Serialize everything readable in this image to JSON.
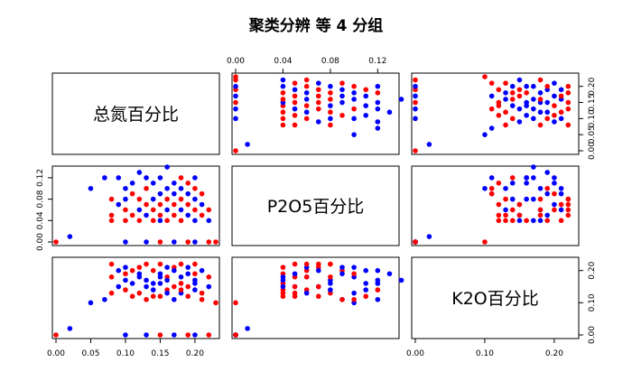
{
  "chart_data": {
    "type": "scatter",
    "title": "聚类分辨 等 4 分组",
    "variables": [
      "总氮百分比",
      "P2O5百分比",
      "K2O百分比"
    ],
    "colors": {
      "group_a": "#0000ff",
      "group_b": "#ff0000",
      "frame": "#000000"
    },
    "axes": {
      "v0": {
        "ticks": [
          0.0,
          0.05,
          0.1,
          0.15,
          0.2
        ],
        "range": [
          0.0,
          0.23
        ]
      },
      "v1": {
        "ticks": [
          0.0,
          0.04,
          0.08,
          0.12
        ],
        "range": [
          0.0,
          0.135
        ]
      },
      "v2": {
        "ticks": [
          0.0,
          0.1,
          0.2
        ],
        "range": [
          0.0,
          0.23
        ]
      }
    },
    "points": [
      {
        "n": 0.0,
        "p": 0.0,
        "k": 0.0,
        "g": "b"
      },
      {
        "n": 0.02,
        "p": 0.01,
        "k": 0.02,
        "g": "a"
      },
      {
        "n": 0.05,
        "p": 0.1,
        "k": 0.1,
        "g": "a"
      },
      {
        "n": 0.07,
        "p": 0.12,
        "k": 0.11,
        "g": "a"
      },
      {
        "n": 0.08,
        "p": 0.08,
        "k": 0.22,
        "g": "b"
      },
      {
        "n": 0.08,
        "p": 0.05,
        "k": 0.18,
        "g": "b"
      },
      {
        "n": 0.08,
        "p": 0.04,
        "k": 0.13,
        "g": "b"
      },
      {
        "n": 0.09,
        "p": 0.12,
        "k": 0.2,
        "g": "a"
      },
      {
        "n": 0.09,
        "p": 0.07,
        "k": 0.15,
        "g": "a"
      },
      {
        "n": 0.1,
        "p": 0.0,
        "k": 0.0,
        "g": "a"
      },
      {
        "n": 0.1,
        "p": 0.04,
        "k": 0.19,
        "g": "b"
      },
      {
        "n": 0.1,
        "p": 0.06,
        "k": 0.14,
        "g": "b"
      },
      {
        "n": 0.1,
        "p": 0.08,
        "k": 0.17,
        "g": "a"
      },
      {
        "n": 0.1,
        "p": 0.1,
        "k": 0.21,
        "g": "a"
      },
      {
        "n": 0.11,
        "p": 0.05,
        "k": 0.12,
        "g": "b"
      },
      {
        "n": 0.11,
        "p": 0.11,
        "k": 0.16,
        "g": "a"
      },
      {
        "n": 0.11,
        "p": 0.09,
        "k": 0.2,
        "g": "b"
      },
      {
        "n": 0.12,
        "p": 0.04,
        "k": 0.21,
        "g": "b"
      },
      {
        "n": 0.12,
        "p": 0.06,
        "k": 0.18,
        "g": "a"
      },
      {
        "n": 0.12,
        "p": 0.08,
        "k": 0.13,
        "g": "b"
      },
      {
        "n": 0.12,
        "p": 0.13,
        "k": 0.19,
        "g": "a"
      },
      {
        "n": 0.13,
        "p": 0.0,
        "k": 0.0,
        "g": "a"
      },
      {
        "n": 0.13,
        "p": 0.05,
        "k": 0.15,
        "g": "a"
      },
      {
        "n": 0.13,
        "p": 0.07,
        "k": 0.22,
        "g": "b"
      },
      {
        "n": 0.13,
        "p": 0.1,
        "k": 0.11,
        "g": "b"
      },
      {
        "n": 0.13,
        "p": 0.12,
        "k": 0.17,
        "g": "a"
      },
      {
        "n": 0.14,
        "p": 0.04,
        "k": 0.12,
        "g": "b"
      },
      {
        "n": 0.14,
        "p": 0.06,
        "k": 0.2,
        "g": "b"
      },
      {
        "n": 0.14,
        "p": 0.08,
        "k": 0.16,
        "g": "a"
      },
      {
        "n": 0.14,
        "p": 0.11,
        "k": 0.14,
        "g": "a"
      },
      {
        "n": 0.15,
        "p": 0.0,
        "k": 0.0,
        "g": "b"
      },
      {
        "n": 0.15,
        "p": 0.04,
        "k": 0.18,
        "g": "a"
      },
      {
        "n": 0.15,
        "p": 0.05,
        "k": 0.22,
        "g": "b"
      },
      {
        "n": 0.15,
        "p": 0.07,
        "k": 0.12,
        "g": "b"
      },
      {
        "n": 0.15,
        "p": 0.09,
        "k": 0.19,
        "g": "a"
      },
      {
        "n": 0.15,
        "p": 0.12,
        "k": 0.16,
        "g": "a"
      },
      {
        "n": 0.16,
        "p": 0.04,
        "k": 0.14,
        "g": "b"
      },
      {
        "n": 0.16,
        "p": 0.06,
        "k": 0.21,
        "g": "a"
      },
      {
        "n": 0.16,
        "p": 0.08,
        "k": 0.18,
        "g": "b"
      },
      {
        "n": 0.16,
        "p": 0.1,
        "k": 0.13,
        "g": "a"
      },
      {
        "n": 0.16,
        "p": 0.14,
        "k": 0.17,
        "g": "a"
      },
      {
        "n": 0.17,
        "p": 0.0,
        "k": 0.0,
        "g": "a"
      },
      {
        "n": 0.17,
        "p": 0.05,
        "k": 0.15,
        "g": "b"
      },
      {
        "n": 0.17,
        "p": 0.07,
        "k": 0.21,
        "g": "b"
      },
      {
        "n": 0.17,
        "p": 0.09,
        "k": 0.11,
        "g": "a"
      },
      {
        "n": 0.17,
        "p": 0.11,
        "k": 0.2,
        "g": "a"
      },
      {
        "n": 0.18,
        "p": 0.04,
        "k": 0.16,
        "g": "b"
      },
      {
        "n": 0.18,
        "p": 0.06,
        "k": 0.13,
        "g": "a"
      },
      {
        "n": 0.18,
        "p": 0.08,
        "k": 0.22,
        "g": "b"
      },
      {
        "n": 0.18,
        "p": 0.1,
        "k": 0.18,
        "g": "a"
      },
      {
        "n": 0.18,
        "p": 0.12,
        "k": 0.14,
        "g": "b"
      },
      {
        "n": 0.19,
        "p": 0.0,
        "k": 0.0,
        "g": "b"
      },
      {
        "n": 0.19,
        "p": 0.05,
        "k": 0.19,
        "g": "a"
      },
      {
        "n": 0.19,
        "p": 0.07,
        "k": 0.15,
        "g": "b"
      },
      {
        "n": 0.19,
        "p": 0.09,
        "k": 0.21,
        "g": "a"
      },
      {
        "n": 0.19,
        "p": 0.11,
        "k": 0.12,
        "g": "b"
      },
      {
        "n": 0.2,
        "p": 0.0,
        "k": 0.0,
        "g": "a"
      },
      {
        "n": 0.2,
        "p": 0.04,
        "k": 0.17,
        "g": "a"
      },
      {
        "n": 0.2,
        "p": 0.06,
        "k": 0.22,
        "g": "b"
      },
      {
        "n": 0.2,
        "p": 0.08,
        "k": 0.14,
        "g": "a"
      },
      {
        "n": 0.2,
        "p": 0.1,
        "k": 0.19,
        "g": "b"
      },
      {
        "n": 0.2,
        "p": 0.12,
        "k": 0.16,
        "g": "a"
      },
      {
        "n": 0.21,
        "p": 0.05,
        "k": 0.13,
        "g": "b"
      },
      {
        "n": 0.21,
        "p": 0.07,
        "k": 0.2,
        "g": "a"
      },
      {
        "n": 0.21,
        "p": 0.09,
        "k": 0.11,
        "g": "b"
      },
      {
        "n": 0.22,
        "p": 0.0,
        "k": 0.0,
        "g": "b"
      },
      {
        "n": 0.22,
        "p": 0.04,
        "k": 0.15,
        "g": "a"
      },
      {
        "n": 0.22,
        "p": 0.06,
        "k": 0.18,
        "g": "b"
      },
      {
        "n": 0.23,
        "p": 0.0,
        "k": 0.1,
        "g": "b"
      }
    ]
  }
}
